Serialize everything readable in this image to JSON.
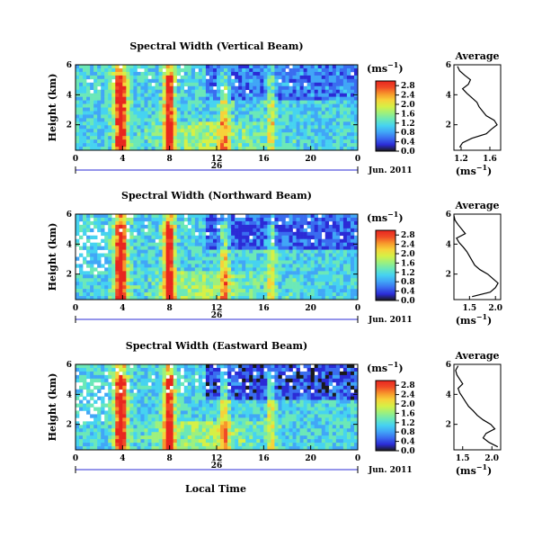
{
  "figure": {
    "xlabel": "Local Time",
    "colorbar": {
      "unit_label": "(ms",
      "unit_exp": "−1",
      "unit_close": ")",
      "stops": [
        "#1a1a1a",
        "#2b2bd6",
        "#3a6cf0",
        "#41a6f7",
        "#46d3f0",
        "#6be8b8",
        "#9ef07c",
        "#d6f046",
        "#f7d23a",
        "#f7962b",
        "#f04a26",
        "#e8261f"
      ]
    },
    "date_label": "Jun. 2011",
    "day_label": "26",
    "avg_title": "Average",
    "avg_unit": "(ms",
    "avg_unit_exp": "−1",
    "avg_unit_close": ")"
  },
  "chart_data": [
    {
      "type": "heatmap",
      "title": "Spectral Width (Vertical Beam)",
      "ylabel": "Height (km)",
      "xticks": [
        "0",
        "4",
        "8",
        "12",
        "16",
        "20",
        "0"
      ],
      "yticks": [
        "2",
        "4",
        "6"
      ],
      "ylim": [
        0.3,
        6.0
      ],
      "cbar_ticks": [
        "0.0",
        "0.4",
        "0.8",
        "1.2",
        "1.6",
        "2.0",
        "2.4",
        "2.8"
      ],
      "cbar_range": [
        0.0,
        3.0
      ],
      "average": {
        "title": "Average",
        "xticks": [
          "1.2",
          "1.6"
        ],
        "xlim": [
          1.1,
          1.75
        ],
        "height_km": [
          0.5,
          0.8,
          1.1,
          1.4,
          1.7,
          2.0,
          2.3,
          2.6,
          2.9,
          3.2,
          3.5,
          3.8,
          4.1,
          4.4,
          4.7,
          5.0,
          5.3,
          5.6,
          5.9
        ],
        "value": [
          1.18,
          1.22,
          1.35,
          1.55,
          1.62,
          1.7,
          1.66,
          1.55,
          1.5,
          1.45,
          1.42,
          1.35,
          1.28,
          1.22,
          1.3,
          1.33,
          1.25,
          1.18,
          1.15
        ]
      }
    },
    {
      "type": "heatmap",
      "title": "Spectral Width (Northward Beam)",
      "ylabel": "Height (km)",
      "xticks": [
        "0",
        "4",
        "8",
        "12",
        "16",
        "20",
        "0"
      ],
      "yticks": [
        "2",
        "4",
        "6"
      ],
      "ylim": [
        0.3,
        6.0
      ],
      "cbar_ticks": [
        "0.0",
        "0.4",
        "0.8",
        "1.2",
        "1.6",
        "2.0",
        "2.4",
        "2.8"
      ],
      "cbar_range": [
        0.0,
        3.0
      ],
      "average": {
        "title": "Average",
        "xticks": [
          "1.5",
          "2.0"
        ],
        "xlim": [
          1.2,
          2.1
        ],
        "height_km": [
          0.5,
          0.8,
          1.1,
          1.4,
          1.7,
          2.0,
          2.3,
          2.6,
          2.9,
          3.2,
          3.5,
          3.8,
          4.1,
          4.4,
          4.7,
          5.0,
          5.3,
          5.6,
          5.9
        ],
        "value": [
          1.55,
          1.9,
          2.0,
          2.05,
          1.95,
          1.85,
          1.7,
          1.6,
          1.55,
          1.5,
          1.45,
          1.38,
          1.3,
          1.25,
          1.42,
          1.35,
          1.28,
          1.22,
          1.2
        ]
      }
    },
    {
      "type": "heatmap",
      "title": "Spectral Width (Eastward Beam)",
      "ylabel": "Height (km)",
      "xticks": [
        "0",
        "4",
        "8",
        "12",
        "16",
        "20",
        "0"
      ],
      "yticks": [
        "2",
        "4",
        "6"
      ],
      "ylim": [
        0.3,
        6.0
      ],
      "cbar_ticks": [
        "0.0",
        "0.4",
        "0.8",
        "1.2",
        "1.6",
        "2.0",
        "2.4",
        "2.8"
      ],
      "cbar_range": [
        0.0,
        3.0
      ],
      "average": {
        "title": "Average",
        "xticks": [
          "1.5",
          "2.0"
        ],
        "xlim": [
          1.35,
          2.15
        ],
        "height_km": [
          0.5,
          0.8,
          1.1,
          1.4,
          1.7,
          2.0,
          2.3,
          2.6,
          2.9,
          3.2,
          3.5,
          3.8,
          4.1,
          4.4,
          4.7,
          5.0,
          5.3,
          5.6,
          5.9
        ],
        "value": [
          2.1,
          1.95,
          1.85,
          1.9,
          2.05,
          1.98,
          1.85,
          1.75,
          1.68,
          1.6,
          1.55,
          1.5,
          1.45,
          1.42,
          1.5,
          1.45,
          1.4,
          1.38,
          1.42
        ]
      }
    }
  ]
}
